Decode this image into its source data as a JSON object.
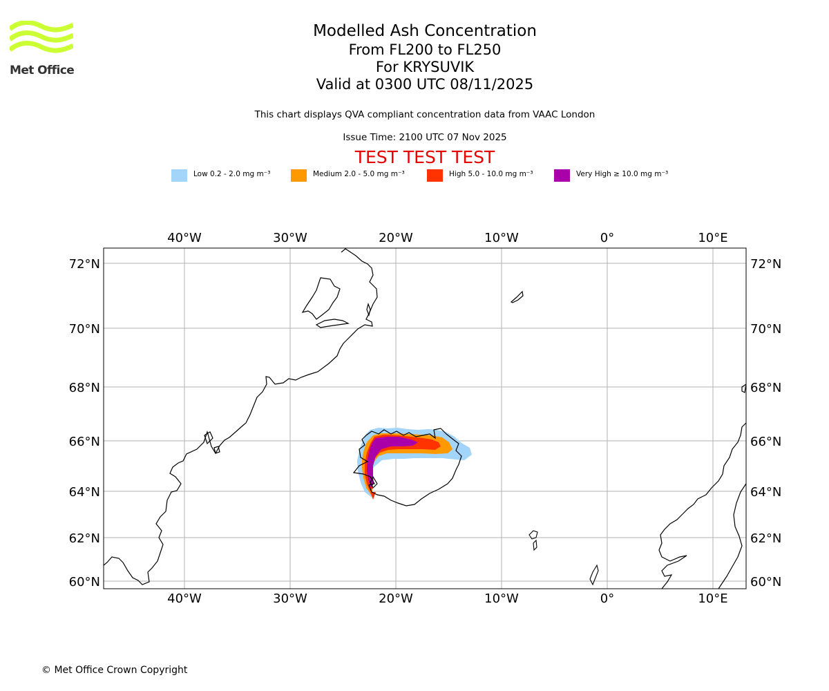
{
  "logo": {
    "text": "Met Office",
    "color": "#ccff33"
  },
  "header": {
    "title": "Modelled Ash Concentration",
    "levels": "From FL200 to FL250",
    "volcano": "For KRYSUVIK",
    "valid": "Valid at 0300 UTC 08/11/2025",
    "description": "This chart displays QVA compliant concentration data from VAAC London",
    "issue_time": "Issue Time: 2100 UTC 07 Nov 2025",
    "test_banner": "TEST TEST TEST"
  },
  "legend": [
    {
      "label": "Low 0.2 - 2.0 mg m⁻³",
      "color": "#a3d4fa"
    },
    {
      "label": "Medium 2.0 - 5.0 mg m⁻³",
      "color": "#ff9900"
    },
    {
      "label": "High 5.0 - 10.0 mg m⁻³",
      "color": "#ff3300"
    },
    {
      "label": "Very High ≥ 10.0 mg m⁻³",
      "color": "#aa00aa"
    }
  ],
  "map": {
    "lon_ticks": [
      "40°W",
      "30°W",
      "20°W",
      "10°W",
      "0°",
      "10°E"
    ],
    "lat_ticks": [
      "72°N",
      "70°N",
      "68°N",
      "66°N",
      "64°N",
      "62°N",
      "60°N"
    ],
    "lon_values": [
      -40,
      -30,
      -20,
      -10,
      0,
      10
    ],
    "lat_values": [
      72,
      70,
      68,
      66,
      64,
      62,
      60
    ],
    "grid_color": "#b0b0b0"
  },
  "footer": {
    "copyright": "© Met Office Crown Copyright"
  }
}
